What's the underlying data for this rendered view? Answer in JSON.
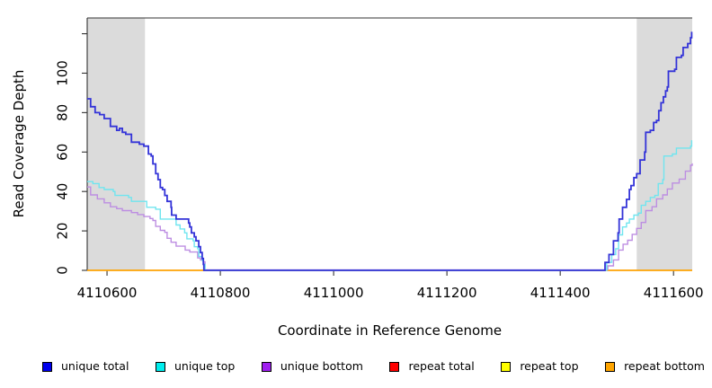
{
  "page": {
    "background": "#FFFFFF"
  },
  "chart_data": {
    "type": "line",
    "title": "",
    "xlabel": "Coordinate in Reference Genome",
    "ylabel": "Read Coverage Depth",
    "xlim": [
      4110565,
      4111633
    ],
    "ylim": [
      0,
      128
    ],
    "x_ticks": [
      4110600,
      4110800,
      4111000,
      4111200,
      4111400,
      4111600
    ],
    "x_tick_labels": [
      "4110600",
      "4110800",
      "4111000",
      "4111200",
      "4111400",
      "4111600"
    ],
    "y_ticks": [
      0,
      20,
      40,
      60,
      80,
      100,
      120
    ],
    "y_tick_labels": [
      "0",
      "20",
      "40",
      "60",
      "80",
      "100",
      ""
    ],
    "grid": false,
    "legend_position": "bottom",
    "axis_color": "#333333",
    "highlight_color": "#DBDBDB",
    "highlight_regions": [
      [
        4110565,
        4110667
      ],
      [
        4111535,
        4111633
      ]
    ],
    "series": [
      {
        "name": "repeat total",
        "color": "#FF0000",
        "line_color": "#DD0000",
        "width": 1.2,
        "points": [
          [
            4110565,
            0
          ],
          [
            4111633,
            0
          ]
        ]
      },
      {
        "name": "repeat top",
        "color": "#FFFF00",
        "line_color": "#FFEE00",
        "width": 1.2,
        "points": [
          [
            4110565,
            0
          ],
          [
            4111633,
            0
          ]
        ]
      },
      {
        "name": "repeat bottom",
        "color": "#FFA500",
        "line_color": "#FFA500",
        "width": 1.5,
        "points": [
          [
            4110565,
            0
          ],
          [
            4111633,
            0
          ]
        ]
      },
      {
        "name": "unique bottom",
        "color": "#A020F0",
        "line_color": "#BD8EE2",
        "width": 1.4,
        "points": [
          [
            4110565,
            42
          ],
          [
            4110571,
            38
          ],
          [
            4110583,
            36
          ],
          [
            4110595,
            34
          ],
          [
            4110606,
            32
          ],
          [
            4110617,
            31
          ],
          [
            4110627,
            30
          ],
          [
            4110643,
            29
          ],
          [
            4110654,
            28
          ],
          [
            4110665,
            27
          ],
          [
            4110676,
            26
          ],
          [
            4110681,
            25
          ],
          [
            4110686,
            22
          ],
          [
            4110694,
            20
          ],
          [
            4110702,
            19
          ],
          [
            4110706,
            16
          ],
          [
            4110713,
            14
          ],
          [
            4110722,
            12
          ],
          [
            4110738,
            10
          ],
          [
            4110746,
            9
          ],
          [
            4110754,
            9
          ],
          [
            4110760,
            6
          ],
          [
            4110765,
            5
          ],
          [
            4110770,
            4
          ],
          [
            4110773,
            0
          ],
          [
            4111483,
            0
          ],
          [
            4111484,
            2
          ],
          [
            4111494,
            5
          ],
          [
            4111503,
            10
          ],
          [
            4111511,
            13
          ],
          [
            4111519,
            15
          ],
          [
            4111527,
            18
          ],
          [
            4111535,
            21
          ],
          [
            4111543,
            24
          ],
          [
            4111551,
            30
          ],
          [
            4111562,
            32
          ],
          [
            4111570,
            36
          ],
          [
            4111581,
            38
          ],
          [
            4111589,
            41
          ],
          [
            4111598,
            44
          ],
          [
            4111610,
            46
          ],
          [
            4111621,
            50
          ],
          [
            4111630,
            53
          ],
          [
            4111633,
            54
          ]
        ]
      },
      {
        "name": "unique top",
        "color": "#00EEEE",
        "line_color": "#70E5EF",
        "width": 1.4,
        "points": [
          [
            4110565,
            45
          ],
          [
            4110575,
            44
          ],
          [
            4110586,
            42
          ],
          [
            4110595,
            41
          ],
          [
            4110611,
            40
          ],
          [
            4110614,
            38
          ],
          [
            4110638,
            37
          ],
          [
            4110643,
            35
          ],
          [
            4110657,
            35
          ],
          [
            4110670,
            32
          ],
          [
            4110686,
            31
          ],
          [
            4110694,
            26
          ],
          [
            4110702,
            26
          ],
          [
            4110722,
            23
          ],
          [
            4110729,
            21
          ],
          [
            4110737,
            19
          ],
          [
            4110741,
            16
          ],
          [
            4110752,
            15
          ],
          [
            4110754,
            12
          ],
          [
            4110760,
            11
          ],
          [
            4110762,
            7
          ],
          [
            4110768,
            5
          ],
          [
            4110770,
            3
          ],
          [
            4110773,
            0
          ],
          [
            4111481,
            0
          ],
          [
            4111482,
            4
          ],
          [
            4111491,
            8
          ],
          [
            4111498,
            11
          ],
          [
            4111503,
            18
          ],
          [
            4111510,
            22
          ],
          [
            4111517,
            24
          ],
          [
            4111522,
            26
          ],
          [
            4111530,
            28
          ],
          [
            4111538,
            29
          ],
          [
            4111543,
            33
          ],
          [
            4111551,
            35
          ],
          [
            4111559,
            37
          ],
          [
            4111567,
            38
          ],
          [
            4111573,
            44
          ],
          [
            4111581,
            46
          ],
          [
            4111583,
            58
          ],
          [
            4111598,
            59
          ],
          [
            4111605,
            62
          ],
          [
            4111630,
            63
          ],
          [
            4111632,
            66
          ]
        ]
      },
      {
        "name": "unique total",
        "color": "#0000EE",
        "line_color": "#3434D8",
        "width": 1.8,
        "points": [
          [
            4110565,
            87
          ],
          [
            4110571,
            83
          ],
          [
            4110579,
            80
          ],
          [
            4110587,
            79
          ],
          [
            4110595,
            77
          ],
          [
            4110606,
            73
          ],
          [
            4110617,
            71
          ],
          [
            4110622,
            72
          ],
          [
            4110627,
            70
          ],
          [
            4110633,
            69
          ],
          [
            4110643,
            65
          ],
          [
            4110657,
            64
          ],
          [
            4110665,
            63
          ],
          [
            4110673,
            59
          ],
          [
            4110678,
            58
          ],
          [
            4110681,
            54
          ],
          [
            4110686,
            49
          ],
          [
            4110690,
            46
          ],
          [
            4110694,
            42
          ],
          [
            4110698,
            41
          ],
          [
            4110702,
            38
          ],
          [
            4110706,
            35
          ],
          [
            4110713,
            32
          ],
          [
            4110714,
            28
          ],
          [
            4110722,
            26
          ],
          [
            4110733,
            26
          ],
          [
            4110744,
            24
          ],
          [
            4110746,
            22
          ],
          [
            4110749,
            19
          ],
          [
            4110754,
            17
          ],
          [
            4110757,
            15
          ],
          [
            4110762,
            12
          ],
          [
            4110765,
            9
          ],
          [
            4110768,
            6
          ],
          [
            4110770,
            3
          ],
          [
            4110771,
            0
          ],
          [
            4111478,
            0
          ],
          [
            4111479,
            4
          ],
          [
            4111486,
            8
          ],
          [
            4111494,
            15
          ],
          [
            4111502,
            19
          ],
          [
            4111504,
            26
          ],
          [
            4111510,
            32
          ],
          [
            4111517,
            36
          ],
          [
            4111522,
            41
          ],
          [
            4111525,
            43
          ],
          [
            4111530,
            47
          ],
          [
            4111535,
            49
          ],
          [
            4111541,
            56
          ],
          [
            4111549,
            60
          ],
          [
            4111551,
            70
          ],
          [
            4111559,
            71
          ],
          [
            4111565,
            75
          ],
          [
            4111570,
            76
          ],
          [
            4111574,
            81
          ],
          [
            4111578,
            85
          ],
          [
            4111582,
            88
          ],
          [
            4111586,
            91
          ],
          [
            4111589,
            93
          ],
          [
            4111591,
            101
          ],
          [
            4111602,
            102
          ],
          [
            4111605,
            108
          ],
          [
            4111614,
            109
          ],
          [
            4111617,
            113
          ],
          [
            4111625,
            115
          ],
          [
            4111630,
            118
          ],
          [
            4111632,
            121
          ]
        ]
      }
    ]
  },
  "legend": {
    "items": [
      {
        "label": "unique total",
        "color": "#0000EE"
      },
      {
        "label": "unique top",
        "color": "#00EEEE"
      },
      {
        "label": "unique bottom",
        "color": "#A020F0"
      },
      {
        "label": "repeat total",
        "color": "#FF0000"
      },
      {
        "label": "repeat top",
        "color": "#FFFF00"
      },
      {
        "label": "repeat bottom",
        "color": "#FFA500"
      }
    ]
  }
}
